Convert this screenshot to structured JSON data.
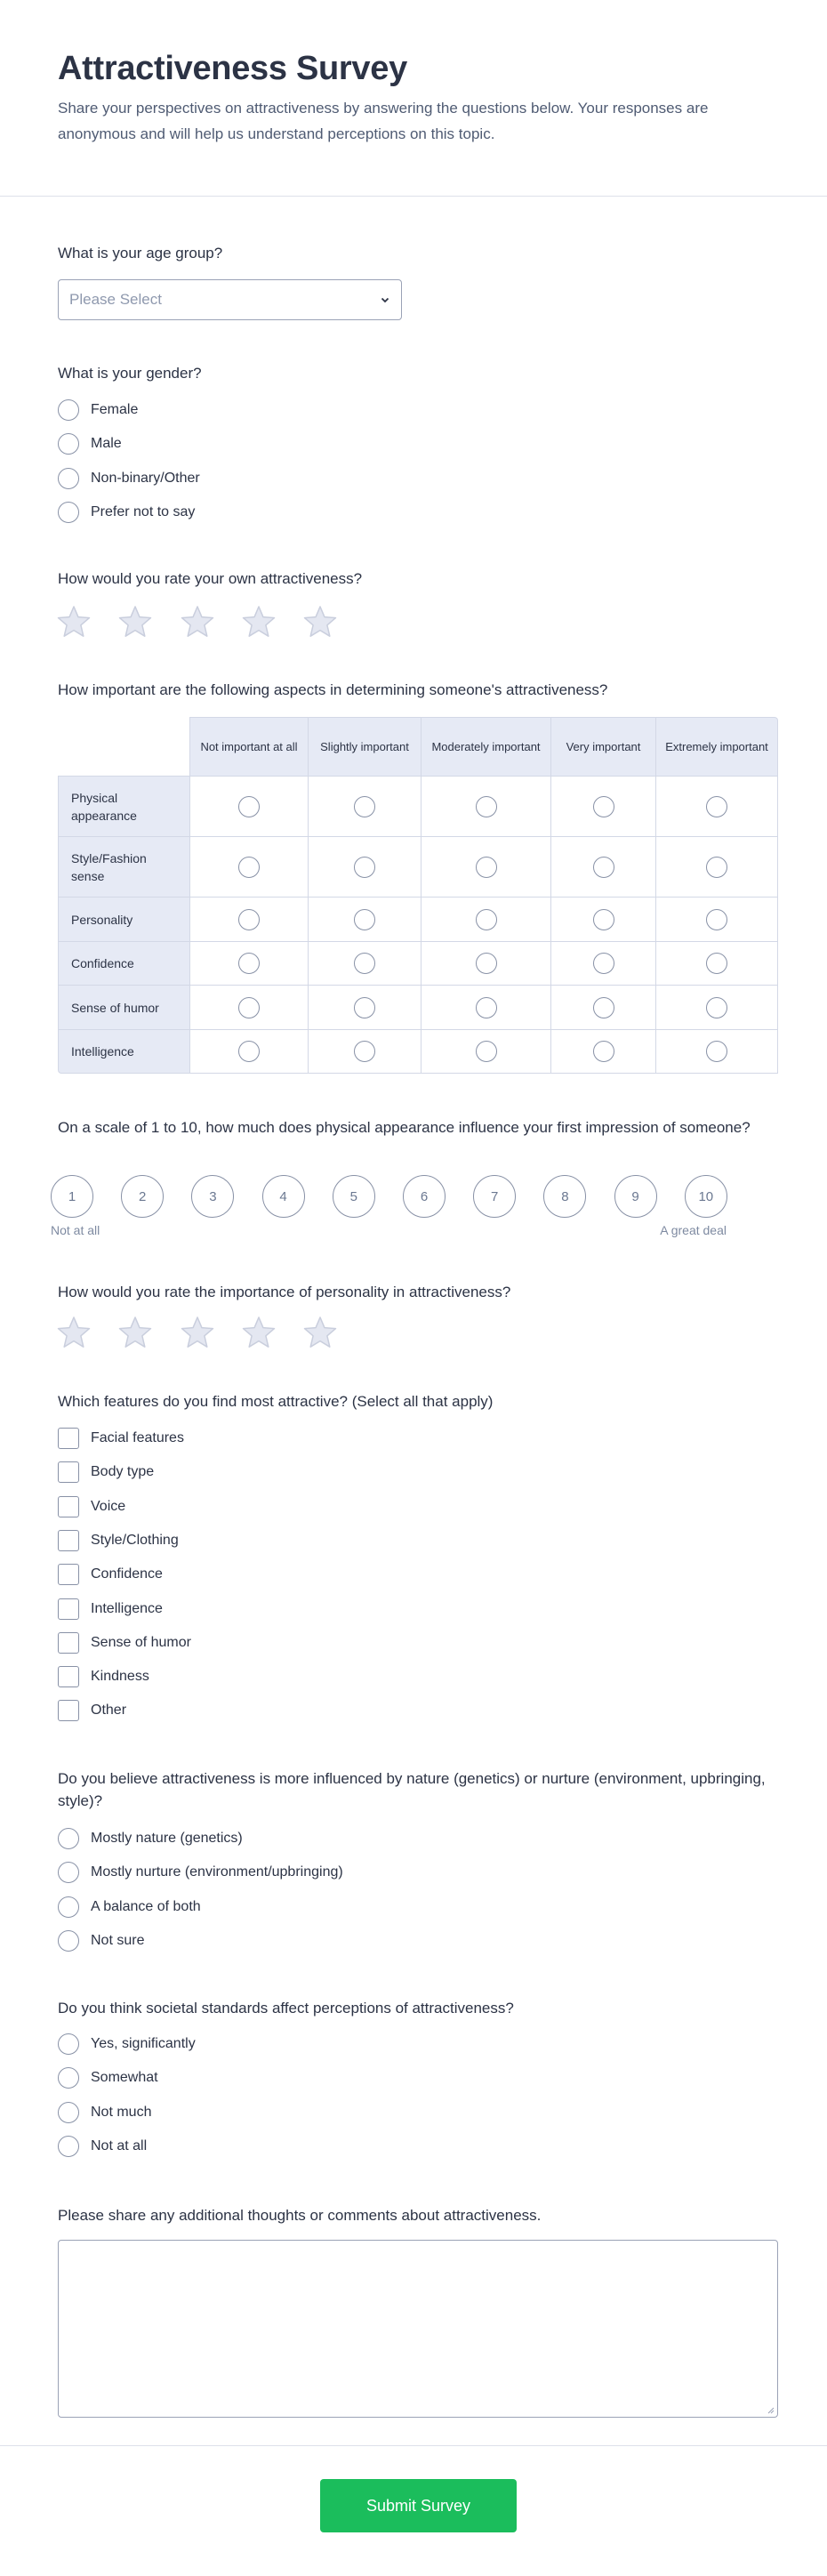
{
  "header": {
    "title": "Attractiveness Survey",
    "subtitle": "Share your perspectives on attractiveness by answering the questions below. Your responses are anonymous and will help us understand perceptions on this topic."
  },
  "q_age": {
    "label": "What is your age group?",
    "placeholder": "Please Select"
  },
  "q_gender": {
    "label": "What is your gender?",
    "options": [
      "Female",
      "Male",
      "Non-binary/Other",
      "Prefer not to say"
    ]
  },
  "q_self_rating": {
    "label": "How would you rate your own attractiveness?",
    "stars": 5,
    "rating": 0
  },
  "q_aspects": {
    "label": "How important are the following aspects in determining someone's attractiveness?",
    "columns": [
      "Not important at all",
      "Slightly important",
      "Moderately important",
      "Very important",
      "Extremely important"
    ],
    "rows": [
      "Physical appearance",
      "Style/Fashion sense",
      "Personality",
      "Confidence",
      "Sense of humor",
      "Intelligence"
    ]
  },
  "q_scale": {
    "label": "On a scale of 1 to 10, how much does physical appearance influence your first impression of someone?",
    "values": [
      "1",
      "2",
      "3",
      "4",
      "5",
      "6",
      "7",
      "8",
      "9",
      "10"
    ],
    "min_label": "Not at all",
    "max_label": "A great deal"
  },
  "q_personality": {
    "label": "How would you rate the importance of personality in attractiveness?",
    "stars": 5,
    "rating": 0
  },
  "q_features": {
    "label": "Which features do you find most attractive? (Select all that apply)",
    "options": [
      "Facial features",
      "Body type",
      "Voice",
      "Style/Clothing",
      "Confidence",
      "Intelligence",
      "Sense of humor",
      "Kindness",
      "Other"
    ]
  },
  "q_nature": {
    "label": "Do you believe attractiveness is more influenced by nature (genetics) or nurture (environment, upbringing, style)?",
    "options": [
      "Mostly nature (genetics)",
      "Mostly nurture (environment/upbringing)",
      "A balance of both",
      "Not sure"
    ]
  },
  "q_societal": {
    "label": "Do you think societal standards affect perceptions of attractiveness?",
    "options": [
      "Yes, significantly",
      "Somewhat",
      "Not much",
      "Not at all"
    ]
  },
  "q_comments": {
    "label": "Please share any additional thoughts or comments about attractiveness.",
    "value": ""
  },
  "submit": {
    "label": "Submit Survey"
  },
  "colors": {
    "accent": "#1bbd5c",
    "header_bg": "#e6eaf5",
    "border": "#9aa2b6",
    "text": "#2c3345",
    "star_fill": "#e4e7f1"
  }
}
